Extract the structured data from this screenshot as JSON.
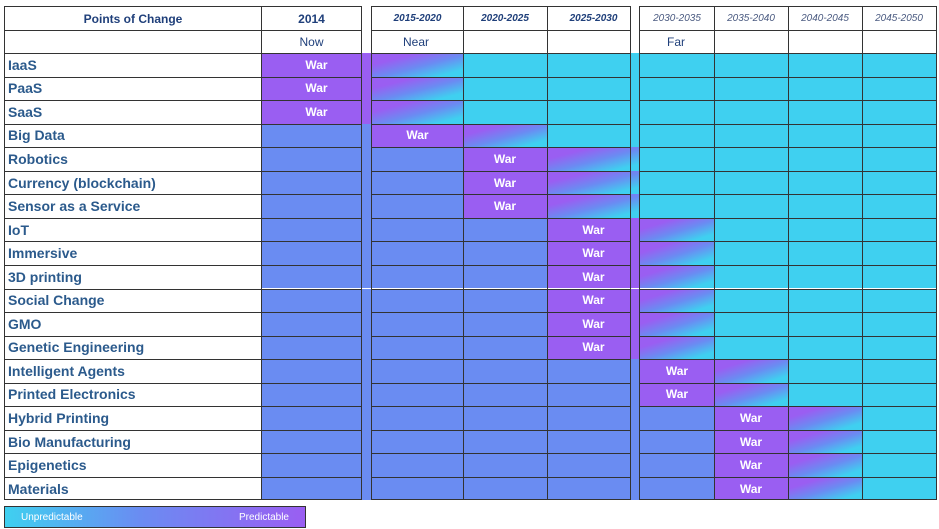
{
  "headers": {
    "points_of_change": "Points of Change",
    "year_2014": "2014",
    "periods": [
      "2015-2020",
      "2020-2025",
      "2025-2030",
      "2030-2035",
      "2035-2040",
      "2040-2045",
      "2045-2050"
    ]
  },
  "subheaders": {
    "now": "Now",
    "near": "Near",
    "far": "Far"
  },
  "war_label": "War",
  "legend": {
    "left": "Unpredictable",
    "right": "Predictable"
  },
  "colors": {
    "unpredictable": "#3fd0f0",
    "transition": "#6a8cf2",
    "predictable": "#9a5ef2"
  },
  "chart_data": {
    "type": "heatmap",
    "columns": [
      "2014",
      "2015-2020",
      "2020-2025",
      "2025-2030",
      "2030-2035",
      "2035-2040",
      "2040-2045",
      "2045-2050"
    ],
    "rows": [
      {
        "label": "IaaS",
        "war_column": "2014"
      },
      {
        "label": "PaaS",
        "war_column": "2014"
      },
      {
        "label": "SaaS",
        "war_column": "2014"
      },
      {
        "label": "Big Data",
        "war_column": "2015-2020"
      },
      {
        "label": "Robotics",
        "war_column": "2020-2025"
      },
      {
        "label": "Currency (blockchain)",
        "war_column": "2020-2025"
      },
      {
        "label": "Sensor as a Service",
        "war_column": "2020-2025"
      },
      {
        "label": "IoT",
        "war_column": "2025-2030"
      },
      {
        "label": "Immersive",
        "war_column": "2025-2030"
      },
      {
        "label": "3D printing",
        "war_column": "2025-2030"
      },
      {
        "label": "Social Change",
        "war_column": "2025-2030"
      },
      {
        "label": "GMO",
        "war_column": "2025-2030"
      },
      {
        "label": "Genetic Engineering",
        "war_column": "2025-2030"
      },
      {
        "label": "Intelligent Agents",
        "war_column": "2030-2035"
      },
      {
        "label": "Printed Electronics",
        "war_column": "2030-2035"
      },
      {
        "label": "Hybrid Printing",
        "war_column": "2035-2040"
      },
      {
        "label": "Bio Manufacturing",
        "war_column": "2035-2040"
      },
      {
        "label": "Epigenetics",
        "war_column": "2035-2040"
      },
      {
        "label": "Materials",
        "war_column": "2035-2040"
      }
    ]
  }
}
